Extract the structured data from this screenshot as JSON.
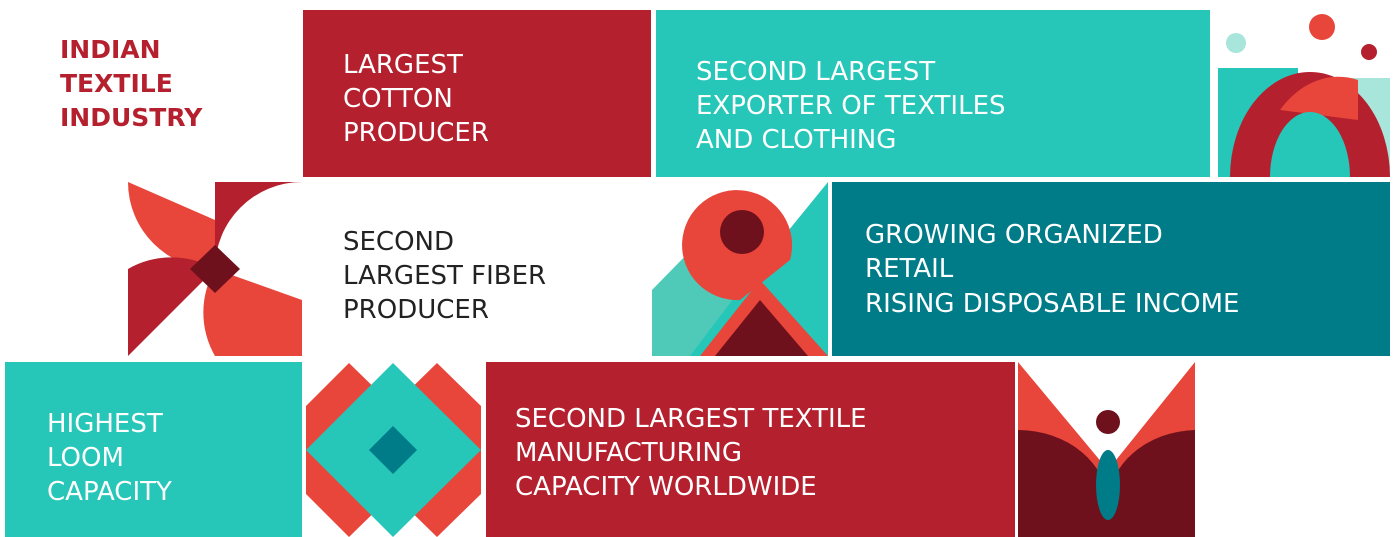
{
  "title": [
    "INDIAN",
    "TEXTILE",
    "INDUSTRY"
  ],
  "tiles": [
    {
      "lines": [
        "LARGEST",
        "COTTON",
        "PRODUCER"
      ]
    },
    {
      "lines": [
        "SECOND LARGEST",
        "EXPORTER OF TEXTILES",
        "AND CLOTHING"
      ]
    },
    {
      "lines": [
        "SECOND",
        "LARGEST FIBER",
        "PRODUCER"
      ]
    },
    {
      "lines": [
        "GROWING ORGANIZED",
        "RETAIL",
        "RISING DISPOSABLE INCOME"
      ]
    },
    {
      "lines": [
        "HIGHEST",
        "LOOM",
        "CAPACITY"
      ]
    },
    {
      "lines": [
        "SECOND LARGEST TEXTILE",
        "MANUFACTURING",
        "CAPACITY WORLDWIDE"
      ]
    }
  ]
}
